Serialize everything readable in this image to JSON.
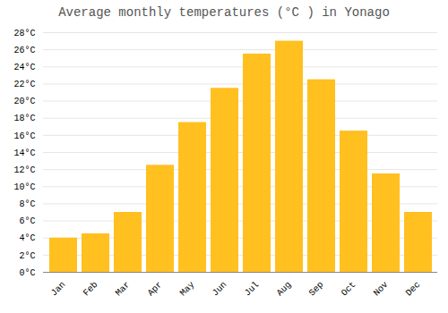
{
  "chart_data": {
    "type": "bar",
    "title": "Average monthly temperatures (°C ) in Yonago",
    "categories": [
      "Jan",
      "Feb",
      "Mar",
      "Apr",
      "May",
      "Jun",
      "Jul",
      "Aug",
      "Sep",
      "Oct",
      "Nov",
      "Dec"
    ],
    "values": [
      4.0,
      4.5,
      7.0,
      12.5,
      17.5,
      21.5,
      25.5,
      27.0,
      22.5,
      16.5,
      11.5,
      7.0
    ],
    "color": "#FFC020",
    "ylim": [
      0,
      28
    ],
    "yticks": [
      {
        "value": 0,
        "label": "0°C"
      },
      {
        "value": 2,
        "label": "2°C"
      },
      {
        "value": 4,
        "label": "4°C"
      },
      {
        "value": 6,
        "label": "6°C"
      },
      {
        "value": 8,
        "label": "8°C"
      },
      {
        "value": 10,
        "label": "10°C"
      },
      {
        "value": 12,
        "label": "12°C"
      },
      {
        "value": 14,
        "label": "14°C"
      },
      {
        "value": 16,
        "label": "16°C"
      },
      {
        "value": 18,
        "label": "18°C"
      },
      {
        "value": 20,
        "label": "20°C"
      },
      {
        "value": 22,
        "label": "22°C"
      },
      {
        "value": 24,
        "label": "24°C"
      },
      {
        "value": 26,
        "label": "26°C"
      },
      {
        "value": 28,
        "label": "28°C"
      }
    ],
    "grid": true
  }
}
